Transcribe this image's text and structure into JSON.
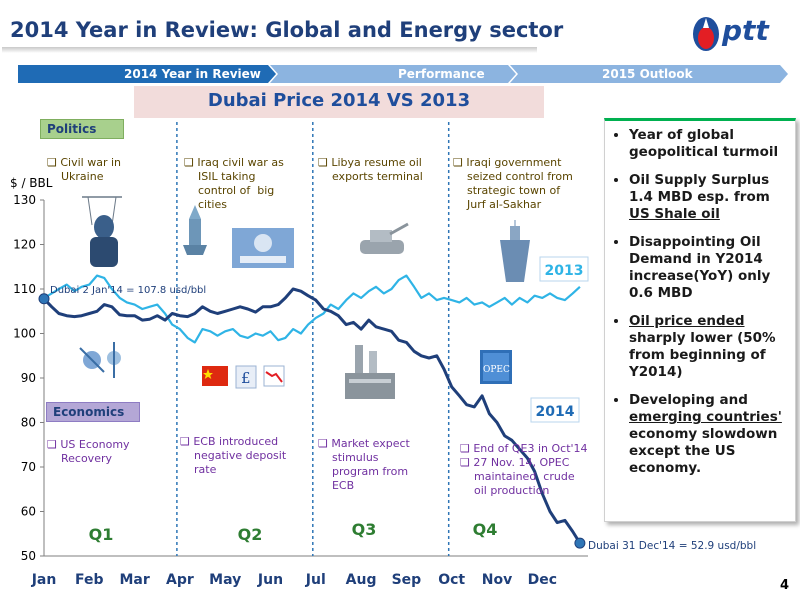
{
  "slide_title": "2014 Year in Review: Global and Energy sector",
  "logo_text": "ptt",
  "nav": [
    "2014 Year in Review",
    "Performance",
    "2015 Outlook"
  ],
  "subtitle": "Dubai Price 2014 VS 2013",
  "politics_label": "Politics",
  "economics_label": "Economics",
  "annotations": {
    "politics": [
      "❑ Civil war in\n    Ukraine",
      "❑ Iraq civil war as\n    ISIL taking\n    control of  big\n    cities",
      "❑ Libya resume oil\n    exports terminal",
      "❑ Iraqi government\n    seized control from\n    strategic town of\n    Jurf al-Sakhar"
    ],
    "economics": [
      "❑ US Economy\n    Recovery",
      "❑ ECB introduced\n    negative deposit\n    rate",
      "❑ Market expect\n    stimulus\n    program from\n    ECB",
      "❑ End of QE3 in Oct'14\n❑ 27 Nov. 14, OPEC\n    maintained  crude\n    oil production"
    ]
  },
  "right_panel": {
    "bullets": [
      {
        "text": "Year of global geopolitical turmoil"
      },
      {
        "text": "Oil Supply Surplus 1.4 MBD esp. from ",
        "underline": "US Shale oil"
      },
      {
        "text": "Disappointing Oil Demand in Y2014 increase(YoY) only 0.6 MBD"
      },
      {
        "underline": "Oil price ended",
        "text": " sharply lower (50% from beginning of Y2014)"
      },
      {
        "text": "Developing and ",
        "underline": "emerging countries'",
        "text2": " economy slowdown except the US economy."
      }
    ]
  },
  "page_number": "4",
  "colors": {
    "series_2014": "#1f3f7a",
    "series_2013": "#2fb4e6",
    "nav_dark": "#1f6bb5",
    "nav_light": "#8cb4e0",
    "divider": "#2e75b6",
    "quarter": "#2e7d32"
  },
  "icons": [
    "ukraine-puppet-icon",
    "rocket-launcher-icon",
    "isil-poster-icon",
    "tank-icon",
    "warship-icon",
    "satellites-icon",
    "china-flag-icon",
    "pound-sign-icon",
    "falling-chart-icon",
    "refinery-icon",
    "opec-logo-icon"
  ],
  "chart_data": {
    "type": "line",
    "ylabel": "$ / BBL",
    "ylim": [
      50,
      130
    ],
    "yticks": [
      50,
      60,
      70,
      80,
      90,
      100,
      110,
      120,
      130
    ],
    "months": [
      "Jan",
      "Feb",
      "Mar",
      "Apr",
      "May",
      "Jun",
      "Jul",
      "Aug",
      "Sep",
      "Oct",
      "Nov",
      "Dec"
    ],
    "quarters": [
      "Q1",
      "Q2",
      "Q3",
      "Q4"
    ],
    "callouts": {
      "start": "Dubai 2 Jan'14 =  107.8  usd/bbl",
      "end": "Dubai 31 Dec'14 =  52.9 usd/bbl"
    },
    "series": [
      {
        "name": "2014",
        "x": [
          0.0,
          0.17,
          0.33,
          0.5,
          0.67,
          0.83,
          1.0,
          1.17,
          1.33,
          1.5,
          1.67,
          1.83,
          2.0,
          2.17,
          2.33,
          2.5,
          2.67,
          2.83,
          3.0,
          3.17,
          3.33,
          3.5,
          3.67,
          3.83,
          4.0,
          4.17,
          4.33,
          4.5,
          4.67,
          4.83,
          5.0,
          5.17,
          5.33,
          5.5,
          5.67,
          5.83,
          6.0,
          6.17,
          6.33,
          6.5,
          6.67,
          6.83,
          7.0,
          7.17,
          7.33,
          7.5,
          7.67,
          7.83,
          8.0,
          8.17,
          8.33,
          8.5,
          8.67,
          8.83,
          9.0,
          9.17,
          9.33,
          9.5,
          9.67,
          9.83,
          10.0,
          10.17,
          10.33,
          10.5,
          10.67,
          10.83,
          11.0,
          11.17,
          11.33,
          11.5,
          11.67,
          11.83
        ],
        "values": [
          107.8,
          106.0,
          104.5,
          104.0,
          103.8,
          104.0,
          104.5,
          105.0,
          106.5,
          106.0,
          104.2,
          104.0,
          104.0,
          103.0,
          103.2,
          104.0,
          103.0,
          104.5,
          104.0,
          103.8,
          104.5,
          106.0,
          105.0,
          104.5,
          105.0,
          105.5,
          106.0,
          105.5,
          104.8,
          106.0,
          106.0,
          106.5,
          108.0,
          110.0,
          109.5,
          108.5,
          107.5,
          105.5,
          105.0,
          104.0,
          102.0,
          102.5,
          101.0,
          103.0,
          101.5,
          101.0,
          100.5,
          98.5,
          98.0,
          96.0,
          95.0,
          94.5,
          95.0,
          92.0,
          88.0,
          86.0,
          84.0,
          83.5,
          86.0,
          82.0,
          80.0,
          77.0,
          76.0,
          74.0,
          72.0,
          69.0,
          64.0,
          60.0,
          57.5,
          58.0,
          55.5,
          52.9
        ]
      },
      {
        "name": "2013",
        "x": [
          0.0,
          0.17,
          0.33,
          0.5,
          0.67,
          0.83,
          1.0,
          1.17,
          1.33,
          1.5,
          1.67,
          1.83,
          2.0,
          2.17,
          2.33,
          2.5,
          2.67,
          2.83,
          3.0,
          3.17,
          3.33,
          3.5,
          3.67,
          3.83,
          4.0,
          4.17,
          4.33,
          4.5,
          4.67,
          4.83,
          5.0,
          5.17,
          5.33,
          5.5,
          5.67,
          5.83,
          6.0,
          6.17,
          6.33,
          6.5,
          6.67,
          6.83,
          7.0,
          7.17,
          7.33,
          7.5,
          7.67,
          7.83,
          8.0,
          8.17,
          8.33,
          8.5,
          8.67,
          8.83,
          9.0,
          9.17,
          9.33,
          9.5,
          9.67,
          9.83,
          10.0,
          10.17,
          10.33,
          10.5,
          10.67,
          10.83,
          11.0,
          11.17,
          11.33,
          11.5,
          11.67,
          11.83
        ],
        "values": [
          108.0,
          109.0,
          110.0,
          111.0,
          109.5,
          110.5,
          111.0,
          113.0,
          112.5,
          110.0,
          108.0,
          107.0,
          106.5,
          105.5,
          106.0,
          106.5,
          104.5,
          102.0,
          101.0,
          99.0,
          98.0,
          101.0,
          100.5,
          99.5,
          100.5,
          101.0,
          99.5,
          99.0,
          100.0,
          99.5,
          100.5,
          98.5,
          99.0,
          101.0,
          100.0,
          102.0,
          103.5,
          104.5,
          106.5,
          105.5,
          107.5,
          109.0,
          108.0,
          109.5,
          110.5,
          109.0,
          110.0,
          112.0,
          113.0,
          110.5,
          108.0,
          109.0,
          107.5,
          108.0,
          107.5,
          107.0,
          108.0,
          106.5,
          107.0,
          106.0,
          107.0,
          108.0,
          106.5,
          108.0,
          107.0,
          108.5,
          108.0,
          109.0,
          108.0,
          107.5,
          109.0,
          110.5
        ]
      }
    ],
    "series_labels": {
      "2014": "2014",
      "2013": "2013"
    }
  }
}
